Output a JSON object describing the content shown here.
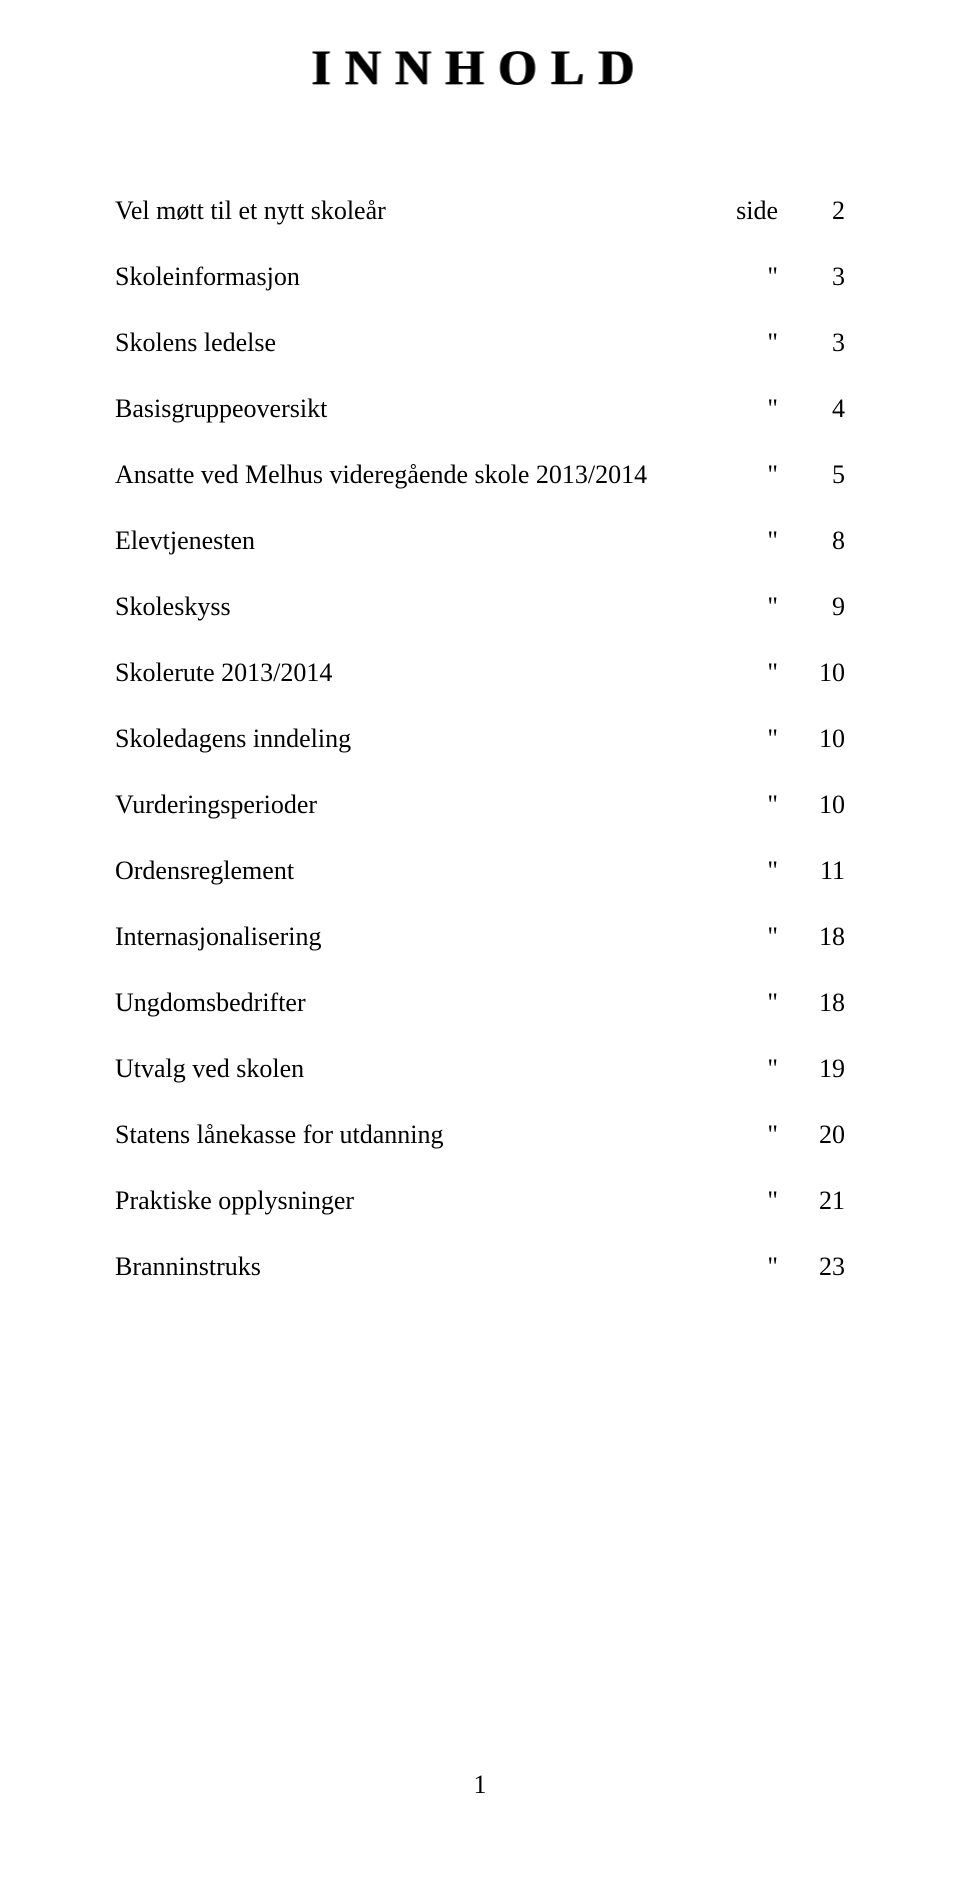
{
  "title": "INNHOLD",
  "toc": [
    {
      "label": "Vel møtt til et nytt skoleår",
      "marker": "side",
      "page": "2"
    },
    {
      "label": "Skoleinformasjon",
      "marker": "\"",
      "page": "3"
    },
    {
      "label": "Skolens ledelse",
      "marker": "\"",
      "page": "3"
    },
    {
      "label": "Basisgruppeoversikt",
      "marker": "\"",
      "page": "4"
    },
    {
      "label": "Ansatte ved Melhus videregående skole 2013/2014",
      "marker": "\"",
      "page": "5"
    },
    {
      "label": "Elevtjenesten",
      "marker": "\"",
      "page": "8"
    },
    {
      "label": "Skoleskyss",
      "marker": "\"",
      "page": "9"
    },
    {
      "label": "Skolerute 2013/2014",
      "marker": "\"",
      "page": "10"
    },
    {
      "label": "Skoledagens inndeling",
      "marker": "\"",
      "page": "10"
    },
    {
      "label": "Vurderingsperioder",
      "marker": "\"",
      "page": "10"
    },
    {
      "label": "Ordensreglement",
      "marker": "\"",
      "page": "11"
    },
    {
      "label": "Internasjonalisering",
      "marker": "\"",
      "page": "18"
    },
    {
      "label": "Ungdomsbedrifter",
      "marker": "\"",
      "page": "18"
    },
    {
      "label": "Utvalg ved skolen",
      "marker": "\"",
      "page": "19"
    },
    {
      "label": "Statens lånekasse for utdanning",
      "marker": "\"",
      "page": "20"
    },
    {
      "label": "Praktiske opplysninger",
      "marker": "\"",
      "page": "21"
    },
    {
      "label": "Branninstruks",
      "marker": "\"",
      "page": "23"
    }
  ],
  "page_number": "1",
  "style": {
    "background_color": "#ffffff",
    "text_color": "#000000",
    "title_fontsize": 50,
    "title_letterspacing": 14,
    "body_fontsize": 26,
    "row_spacing": 36
  }
}
